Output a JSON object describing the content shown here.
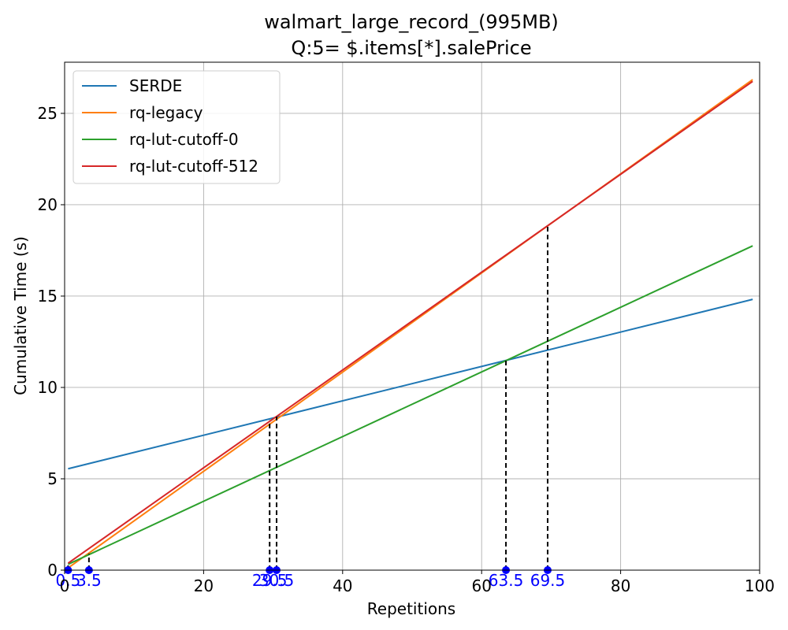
{
  "chart_data": {
    "type": "line",
    "title_lines": [
      "walmart_large_record_(995MB)",
      "Q:5= $.items[*].salePrice"
    ],
    "xlabel": "Repetitions",
    "ylabel": "Cumulative Time (s)",
    "xlim": [
      0,
      100
    ],
    "ylim": [
      0,
      27.8
    ],
    "xticks": [
      0,
      20,
      40,
      60,
      80,
      100
    ],
    "yticks": [
      0,
      5,
      10,
      15,
      20,
      25
    ],
    "grid": true,
    "legend_position": "upper-left",
    "series": [
      {
        "name": "SERDE",
        "color": "#1f77b4",
        "x": [
          0.5,
          99
        ],
        "y": [
          5.55,
          14.82
        ]
      },
      {
        "name": "rq-legacy",
        "color": "#ff7f0e",
        "x": [
          0.5,
          99
        ],
        "y": [
          0.12,
          26.85
        ]
      },
      {
        "name": "rq-lut-cutoff-0",
        "color": "#2ca02c",
        "x": [
          0.5,
          99
        ],
        "y": [
          0.32,
          17.75
        ]
      },
      {
        "name": "rq-lut-cutoff-512",
        "color": "#d62728",
        "x": [
          0.5,
          99
        ],
        "y": [
          0.38,
          26.75
        ]
      }
    ],
    "crossovers": [
      {
        "x": 0.5,
        "y": 0.3,
        "label": "0.5"
      },
      {
        "x": 3.5,
        "y": 0.9,
        "label": "3.5"
      },
      {
        "x": 29.5,
        "y": 8.2,
        "label": "29.5"
      },
      {
        "x": 30.5,
        "y": 8.4,
        "label": "30.5"
      },
      {
        "x": 63.5,
        "y": 11.5,
        "label": "63.5"
      },
      {
        "x": 69.5,
        "y": 18.8,
        "label": "69.5"
      }
    ],
    "marker_color": "#0000ff"
  }
}
